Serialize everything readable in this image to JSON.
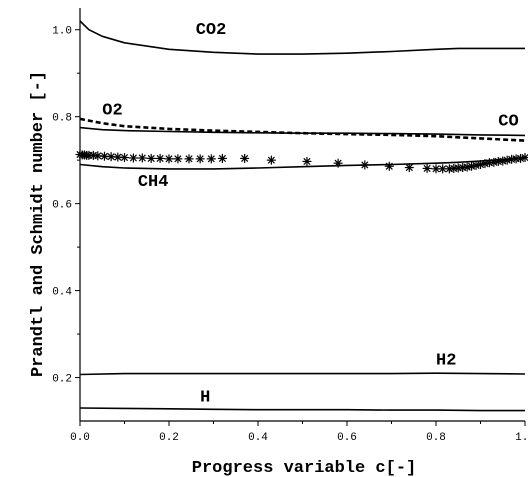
{
  "chart_data": {
    "type": "line",
    "title": "",
    "xlabel": "Progress variable c[-]",
    "ylabel": "Prandtl and Schmidt number [-]",
    "xlim": [
      0,
      1
    ],
    "ylim": [
      0.1,
      1.05
    ],
    "grid": false,
    "x_ticks": [
      "0.0",
      "0.2",
      "0.4",
      "0.6",
      "0.8",
      "1.0"
    ],
    "y_ticks": [
      "0.2",
      "0.4",
      "0.6",
      "0.8",
      "1.0"
    ],
    "series": [
      {
        "name": "CO2",
        "style": "solid",
        "x": [
          0.0,
          0.02,
          0.05,
          0.1,
          0.2,
          0.3,
          0.4,
          0.5,
          0.6,
          0.7,
          0.8,
          0.85,
          0.9,
          1.0
        ],
        "y": [
          1.02,
          1.0,
          0.985,
          0.97,
          0.955,
          0.948,
          0.944,
          0.944,
          0.946,
          0.95,
          0.955,
          0.957,
          0.957,
          0.957
        ]
      },
      {
        "name": "O2",
        "style": "dashed",
        "x": [
          0.0,
          0.05,
          0.1,
          0.2,
          0.3,
          0.4,
          0.5,
          0.6,
          0.7,
          0.8,
          0.9,
          1.0
        ],
        "y": [
          0.795,
          0.785,
          0.778,
          0.772,
          0.768,
          0.765,
          0.762,
          0.76,
          0.758,
          0.755,
          0.75,
          0.745
        ]
      },
      {
        "name": "CO",
        "style": "solid",
        "x": [
          0.0,
          0.05,
          0.1,
          0.2,
          0.3,
          0.4,
          0.5,
          0.6,
          0.7,
          0.8,
          0.9,
          1.0
        ],
        "y": [
          0.775,
          0.77,
          0.768,
          0.766,
          0.764,
          0.763,
          0.762,
          0.762,
          0.761,
          0.76,
          0.758,
          0.757
        ]
      },
      {
        "name": "CH4",
        "style": "solid",
        "x": [
          0.0,
          0.05,
          0.1,
          0.2,
          0.3,
          0.4,
          0.5,
          0.6,
          0.7,
          0.8,
          0.85,
          0.9,
          1.0
        ],
        "y": [
          0.69,
          0.685,
          0.682,
          0.68,
          0.68,
          0.682,
          0.685,
          0.688,
          0.69,
          0.693,
          0.695,
          0.698,
          0.705
        ]
      },
      {
        "name": "",
        "style": "markers",
        "x": [
          0.0,
          0.005,
          0.01,
          0.015,
          0.02,
          0.03,
          0.04,
          0.055,
          0.07,
          0.085,
          0.1,
          0.12,
          0.14,
          0.16,
          0.18,
          0.2,
          0.22,
          0.245,
          0.27,
          0.295,
          0.32,
          0.37,
          0.43,
          0.51,
          0.58,
          0.64,
          0.695,
          0.74,
          0.78,
          0.8,
          0.815,
          0.83,
          0.84,
          0.85,
          0.86,
          0.87,
          0.88,
          0.89,
          0.9,
          0.91,
          0.92,
          0.93,
          0.94,
          0.95,
          0.96,
          0.97,
          0.98,
          0.99,
          1.0
        ],
        "y": [
          0.713,
          0.712,
          0.712,
          0.711,
          0.711,
          0.711,
          0.71,
          0.709,
          0.708,
          0.707,
          0.706,
          0.705,
          0.705,
          0.704,
          0.704,
          0.703,
          0.703,
          0.703,
          0.703,
          0.703,
          0.704,
          0.704,
          0.7,
          0.697,
          0.693,
          0.689,
          0.686,
          0.683,
          0.681,
          0.68,
          0.68,
          0.68,
          0.681,
          0.682,
          0.683,
          0.684,
          0.686,
          0.688,
          0.69,
          0.692,
          0.694,
          0.695,
          0.697,
          0.698,
          0.7,
          0.702,
          0.703,
          0.704,
          0.706
        ]
      },
      {
        "name": "H2",
        "style": "solid",
        "x": [
          0.0,
          0.1,
          0.2,
          0.3,
          0.4,
          0.5,
          0.6,
          0.7,
          0.8,
          0.9,
          1.0
        ],
        "y": [
          0.207,
          0.209,
          0.209,
          0.209,
          0.209,
          0.209,
          0.209,
          0.209,
          0.21,
          0.209,
          0.208
        ]
      },
      {
        "name": "H",
        "style": "solid",
        "x": [
          0.0,
          0.1,
          0.2,
          0.3,
          0.4,
          0.5,
          0.6,
          0.7,
          0.8,
          0.9,
          1.0
        ],
        "y": [
          0.13,
          0.129,
          0.128,
          0.127,
          0.126,
          0.126,
          0.126,
          0.125,
          0.125,
          0.124,
          0.124
        ]
      }
    ],
    "annotations": [
      {
        "text": "CO2",
        "x": 0.26,
        "y": 0.99
      },
      {
        "text": "O2",
        "x": 0.05,
        "y": 0.805
      },
      {
        "text": "CO",
        "x": 0.94,
        "y": 0.78
      },
      {
        "text": "CH4",
        "x": 0.13,
        "y": 0.64
      },
      {
        "text": "H2",
        "x": 0.8,
        "y": 0.23
      },
      {
        "text": "H",
        "x": 0.27,
        "y": 0.145
      }
    ]
  }
}
